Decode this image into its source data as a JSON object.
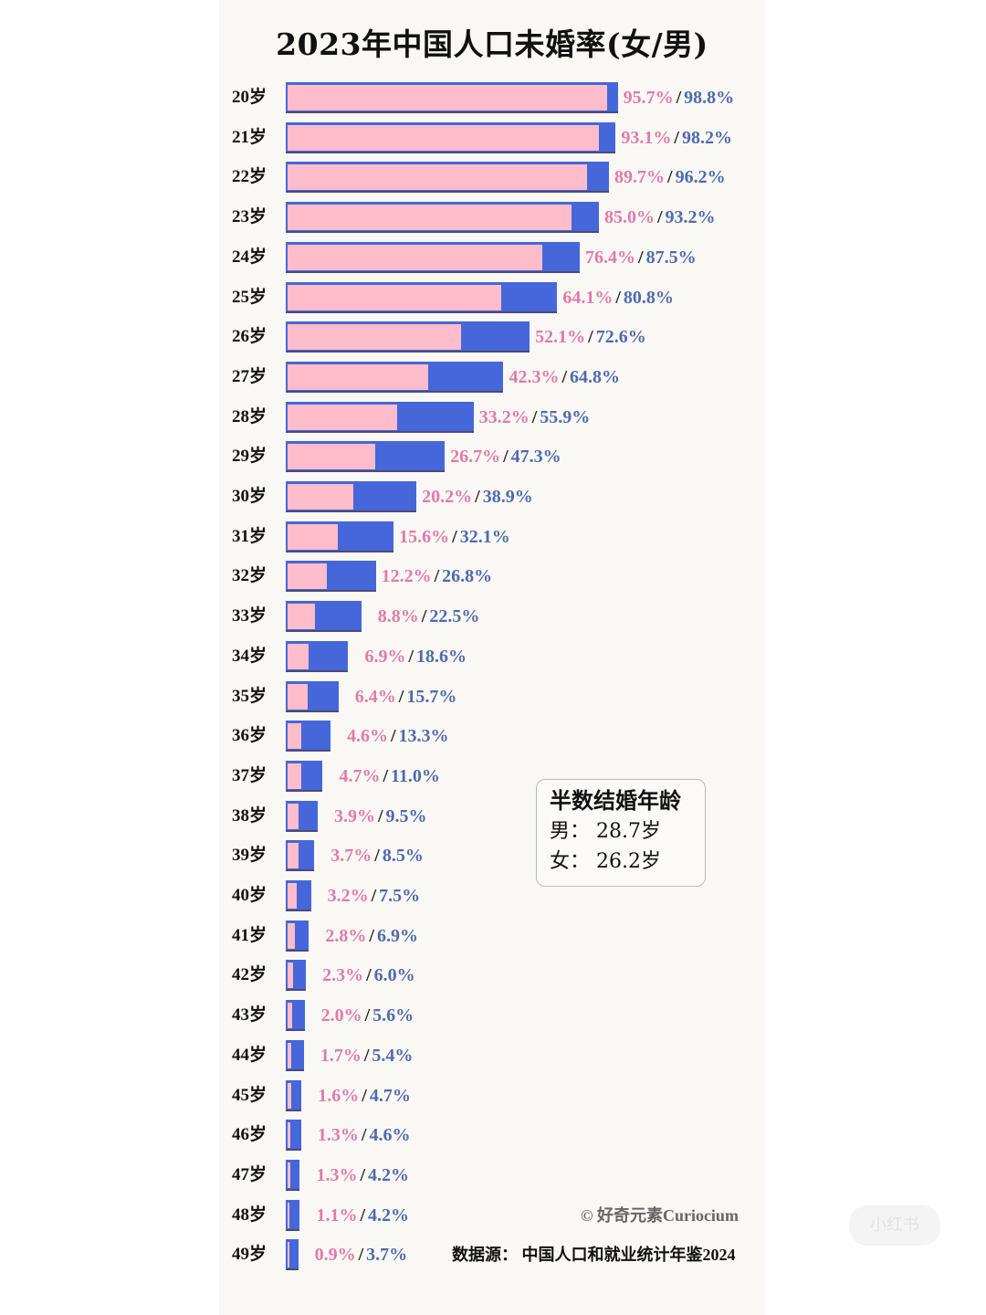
{
  "title": "2023年中国人口未婚率(女/男)",
  "info_box": {
    "heading": "半数结婚年龄",
    "male_line": "男：  28.7岁",
    "female_line": "女：  26.2岁"
  },
  "credit": "© 好奇元素Curiocium",
  "source": "数据源：  中国人口和就业统计年鉴2024",
  "watermark": "小红书",
  "colors": {
    "male_bar": "#4567d9",
    "female_bar": "#ffbccb",
    "female_text": "#e27aa8",
    "male_text": "#4f6aae"
  },
  "chart_data": {
    "type": "bar",
    "orientation": "horizontal",
    "title": "2023年中国人口未婚率(女/男)",
    "xlabel": "",
    "ylabel": "",
    "xlim": [
      0,
      100
    ],
    "grid": false,
    "legend": "none (values labelled female/male)",
    "categories": [
      "20岁",
      "21岁",
      "22岁",
      "23岁",
      "24岁",
      "25岁",
      "26岁",
      "27岁",
      "28岁",
      "29岁",
      "30岁",
      "31岁",
      "32岁",
      "33岁",
      "34岁",
      "35岁",
      "36岁",
      "37岁",
      "38岁",
      "39岁",
      "40岁",
      "41岁",
      "42岁",
      "43岁",
      "44岁",
      "45岁",
      "46岁",
      "47岁",
      "48岁",
      "49岁"
    ],
    "series": [
      {
        "name": "女",
        "color": "#ffbccb",
        "values": [
          95.7,
          93.1,
          89.7,
          85.0,
          76.4,
          64.1,
          52.1,
          42.3,
          33.2,
          26.7,
          20.2,
          15.6,
          12.2,
          8.8,
          6.9,
          6.4,
          4.6,
          4.7,
          3.9,
          3.7,
          3.2,
          2.8,
          2.3,
          2.0,
          1.7,
          1.6,
          1.3,
          1.3,
          1.1,
          0.9
        ]
      },
      {
        "name": "男",
        "color": "#4567d9",
        "values": [
          98.8,
          98.2,
          96.2,
          93.2,
          87.5,
          80.8,
          72.6,
          64.8,
          55.9,
          47.3,
          38.9,
          32.1,
          26.8,
          22.5,
          18.6,
          15.7,
          13.3,
          11.0,
          9.5,
          8.5,
          7.5,
          6.9,
          6.0,
          5.6,
          5.4,
          4.7,
          4.6,
          4.2,
          4.2,
          3.7
        ]
      }
    ],
    "labels": [
      {
        "f": "95.7%",
        "m": "98.8%"
      },
      {
        "f": "93.1%",
        "m": "98.2%"
      },
      {
        "f": "89.7%",
        "m": "96.2%"
      },
      {
        "f": "85.0%",
        "m": "93.2%"
      },
      {
        "f": "76.4%",
        "m": "87.5%"
      },
      {
        "f": "64.1%",
        "m": "80.8%"
      },
      {
        "f": "52.1%",
        "m": "72.6%"
      },
      {
        "f": "42.3%",
        "m": "64.8%"
      },
      {
        "f": "33.2%",
        "m": "55.9%"
      },
      {
        "f": "26.7%",
        "m": "47.3%"
      },
      {
        "f": "20.2%",
        "m": "38.9%"
      },
      {
        "f": "15.6%",
        "m": "32.1%"
      },
      {
        "f": "12.2%",
        "m": "26.8%"
      },
      {
        "f": "8.8%",
        "m": "22.5%"
      },
      {
        "f": "6.9%",
        "m": "18.6%"
      },
      {
        "f": "6.4%",
        "m": "15.7%"
      },
      {
        "f": "4.6%",
        "m": "13.3%"
      },
      {
        "f": "4.7%",
        "m": "11.0%"
      },
      {
        "f": "3.9%",
        "m": "9.5%"
      },
      {
        "f": "3.7%",
        "m": "8.5%"
      },
      {
        "f": "3.2%",
        "m": "7.5%"
      },
      {
        "f": "2.8%",
        "m": "6.9%"
      },
      {
        "f": "2.3%",
        "m": "6.0%"
      },
      {
        "f": "2.0%",
        "m": "5.6%"
      },
      {
        "f": "1.7%",
        "m": "5.4%"
      },
      {
        "f": "1.6%",
        "m": "4.7%"
      },
      {
        "f": "1.3%",
        "m": "4.6%"
      },
      {
        "f": "1.3%",
        "m": "4.2%"
      },
      {
        "f": "1.1%",
        "m": "4.2%"
      },
      {
        "f": "0.9%",
        "m": "3.7%"
      }
    ],
    "separator": "/",
    "annotation": {
      "heading": "半数结婚年龄",
      "male": "28.7岁",
      "female": "26.2岁"
    }
  }
}
